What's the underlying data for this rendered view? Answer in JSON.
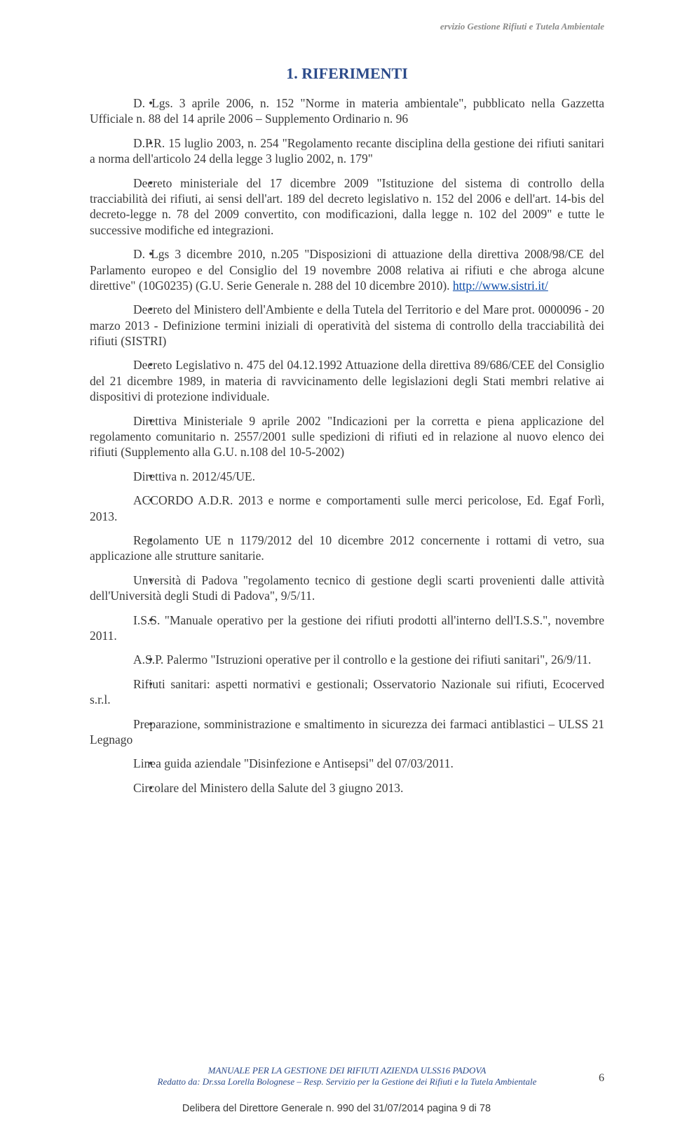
{
  "colors": {
    "heading": "#2b4a8a",
    "body_text": "#3a3a3a",
    "header_gray": "#8a8a88",
    "link": "#0a4aa8",
    "bg": "#ffffff"
  },
  "typography": {
    "body_family": "Times New Roman",
    "body_size_pt": 13,
    "heading_size_pt": 16,
    "footer_family": "Times New Roman",
    "delibera_family": "Arial"
  },
  "header": {
    "right_text": "ervizio Gestione Rifiuti e Tutela Ambientale"
  },
  "heading": "1. RIFERIMENTI",
  "bullets": [
    {
      "text": "D. Lgs. 3 aprile 2006, n. 152 \"Norme in materia ambientale\", pubblicato nella Gazzetta Ufficiale n. 88 del 14 aprile 2006 – Supplemento Ordinario n. 96"
    },
    {
      "text": "D.P.R. 15 luglio 2003, n. 254 \"Regolamento recante disciplina della gestione dei rifiuti sanitari a norma dell'articolo 24 della legge 3 luglio 2002, n. 179\""
    },
    {
      "text": "Decreto ministeriale del 17 dicembre 2009 \"Istituzione del sistema di controllo della tracciabilità dei rifiuti, ai sensi dell'art. 189 del decreto legislativo n. 152 del 2006 e dell'art. 14-bis del decreto-legge n. 78 del 2009 convertito, con modificazioni, dalla legge n. 102 del 2009\" e tutte le successive modifiche ed integrazioni."
    },
    {
      "text_pre": "D. Lgs 3 dicembre 2010, n.205 \"Disposizioni di attuazione della direttiva 2008/98/CE del Parlamento europeo e del Consiglio del 19 novembre 2008 relativa ai rifiuti e che abroga alcune direttive\" (10G0235) (G.U. Serie Generale n. 288 del 10 dicembre 2010). ",
      "link_text": "http://www.sistri.it/",
      "link_href": "http://www.sistri.it/"
    },
    {
      "text": "Decreto del Ministero dell'Ambiente e della Tutela del Territorio e del Mare prot. 0000096 - 20 marzo 2013 - Definizione termini iniziali di operatività del sistema di controllo della tracciabilità dei rifiuti (SISTRI)"
    },
    {
      "text": "Decreto Legislativo n. 475 del 04.12.1992 Attuazione della direttiva 89/686/CEE del Consiglio del 21 dicembre 1989, in materia di ravvicinamento delle legislazioni degli Stati membri relative ai dispositivi di protezione individuale."
    },
    {
      "text": "Direttiva Ministeriale 9 aprile 2002 \"Indicazioni per la corretta e piena applicazione del regolamento comunitario n. 2557/2001 sulle spedizioni di rifiuti ed in relazione al nuovo elenco dei rifiuti (Supplemento alla G.U. n.108 del 10-5-2002)"
    },
    {
      "text": "Direttiva n. 2012/45/UE."
    },
    {
      "text": "ACCORDO A.D.R. 2013 e norme e comportamenti sulle merci pericolose, Ed. Egaf Forlì, 2013."
    },
    {
      "text": "Regolamento UE n 1179/2012 del 10 dicembre 2012 concernente i rottami di vetro, sua applicazione alle strutture sanitarie."
    },
    {
      "text": "Unversità di Padova \"regolamento tecnico di gestione degli scarti provenienti dalle attività dell'Università degli Studi di Padova\", 9/5/11."
    },
    {
      "text": "I.S.S. \"Manuale operativo per la gestione dei rifiuti prodotti all'interno dell'I.S.S.\", novembre 2011."
    },
    {
      "text": "A.S.P. Palermo \"Istruzioni operative per il controllo e la gestione dei rifiuti sanitari\", 26/9/11."
    },
    {
      "text": "Rifiuti sanitari: aspetti normativi e gestionali; Osservatorio Nazionale sui rifiuti, Ecocerved s.r.l."
    },
    {
      "text": "Preparazione, somministrazione e smaltimento in sicurezza dei farmaci antiblastici – ULSS 21 Legnago"
    },
    {
      "text": "Linea guida aziendale \"Disinfezione e Antisepsi\" del 07/03/2011."
    },
    {
      "text": "Circolare del Ministero della Salute del 3 giugno 2013."
    }
  ],
  "footer": {
    "line1": "MANUALE PER LA GESTIONE DEI RIFIUTI  AZIENDA ULSS16 PADOVA",
    "line2": "Redatto da: Dr.ssa Lorella Bolognese – Resp. Servizio per la Gestione dei Rifiuti e la Tutela Ambientale"
  },
  "page_number": "6",
  "delibera": "Delibera del Direttore Generale n.  990 del 31/07/2014 pagina 9 di 78"
}
